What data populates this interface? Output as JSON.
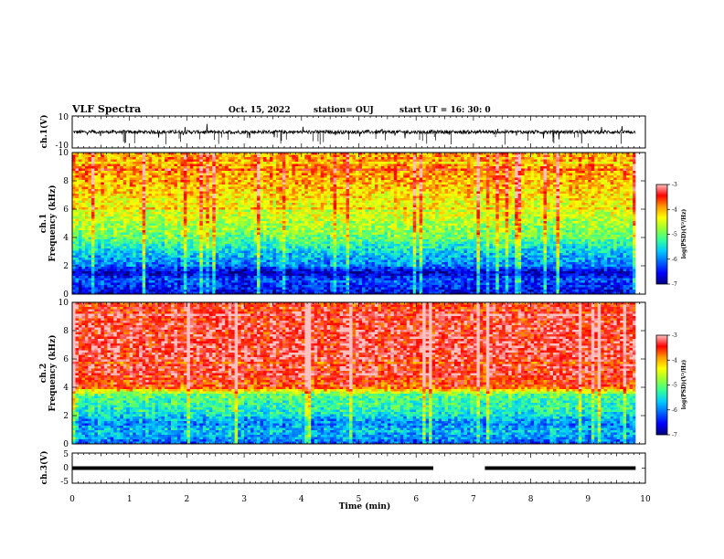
{
  "header": {
    "title": "VLF Spectra",
    "date": "Oct. 15, 2022",
    "station": "station= OUJ",
    "start_ut": "start  UT =   16: 30: 0"
  },
  "chart_data": [
    {
      "type": "line",
      "panel": "ch1-waveform",
      "ylabel": "ch.1(V)",
      "yticks": [
        "10",
        "-10"
      ],
      "ylim": [
        -10,
        10
      ],
      "xlim": [
        0,
        10
      ],
      "trace_end_min": 9.83,
      "mean_level": 0,
      "amplitude_note": "noisy waveform around 0 V"
    },
    {
      "type": "heatmap",
      "panel": "ch1-spectrogram",
      "ylabel": "ch.1\nFrequency  (kHz)",
      "yticks": [
        "0",
        "2",
        "4",
        "6",
        "8",
        "10"
      ],
      "ylim": [
        0,
        10
      ],
      "xlim": [
        0,
        10
      ],
      "colorbar": {
        "label": "log(PSD)(V²/Hz)",
        "ticks": [
          "-3",
          "-4",
          "-5",
          "-6",
          "-7"
        ],
        "range": [
          -7,
          -3
        ]
      },
      "level_profile_kHz": [
        [
          0,
          -6.6
        ],
        [
          0.5,
          -6.4
        ],
        [
          1.0,
          -6.2
        ],
        [
          1.5,
          -6.8
        ],
        [
          2.0,
          -6.0
        ],
        [
          2.5,
          -5.8
        ],
        [
          3.0,
          -5.6
        ],
        [
          3.5,
          -5.3
        ],
        [
          4.0,
          -5.0
        ],
        [
          5.0,
          -4.7
        ],
        [
          6.0,
          -4.4
        ],
        [
          7.0,
          -4.2
        ],
        [
          8.0,
          -4.0
        ],
        [
          9.0,
          -3.9
        ],
        [
          10.0,
          -4.0
        ]
      ]
    },
    {
      "type": "heatmap",
      "panel": "ch2-spectrogram",
      "ylabel": "ch.2\nFrequency  (kHz)",
      "yticks": [
        "0",
        "2",
        "4",
        "6",
        "8",
        "10"
      ],
      "ylim": [
        0,
        10
      ],
      "xlim": [
        0,
        10
      ],
      "colorbar": {
        "label": "log(PSD)(V²/Hz)",
        "ticks": [
          "-3",
          "-4",
          "-5",
          "-6",
          "-7"
        ],
        "range": [
          -7,
          -3
        ]
      },
      "level_profile_kHz": [
        [
          0,
          -6.2
        ],
        [
          0.5,
          -5.8
        ],
        [
          1.0,
          -5.7
        ],
        [
          1.5,
          -6.0
        ],
        [
          2.0,
          -5.5
        ],
        [
          2.5,
          -5.3
        ],
        [
          3.0,
          -5.2
        ],
        [
          3.5,
          -5.0
        ],
        [
          4.0,
          -3.6
        ],
        [
          5.0,
          -3.4
        ],
        [
          6.0,
          -3.3
        ],
        [
          7.0,
          -3.3
        ],
        [
          8.0,
          -3.3
        ],
        [
          9.0,
          -3.4
        ],
        [
          10.0,
          -3.5
        ]
      ]
    },
    {
      "type": "line",
      "panel": "ch3-voltage",
      "ylabel": "ch.3(V)",
      "yticks": [
        "5",
        "0",
        "-5"
      ],
      "ylim": [
        -5,
        5
      ],
      "xlim": [
        0,
        10
      ],
      "segments": [
        {
          "x": [
            0,
            6.3
          ],
          "y": 0
        },
        {
          "x": [
            7.2,
            9.83
          ],
          "y": 0
        }
      ]
    }
  ],
  "xaxis": {
    "label": "Time  (min)",
    "ticks": [
      "0",
      "1",
      "2",
      "3",
      "4",
      "5",
      "6",
      "7",
      "8",
      "9",
      "10"
    ]
  },
  "colors": {
    "colormap": [
      "#00007f",
      "#0000ff",
      "#0066ff",
      "#00ccff",
      "#33ff99",
      "#99ff33",
      "#ffff00",
      "#ff9900",
      "#ff0000",
      "#ffc0c0"
    ]
  }
}
